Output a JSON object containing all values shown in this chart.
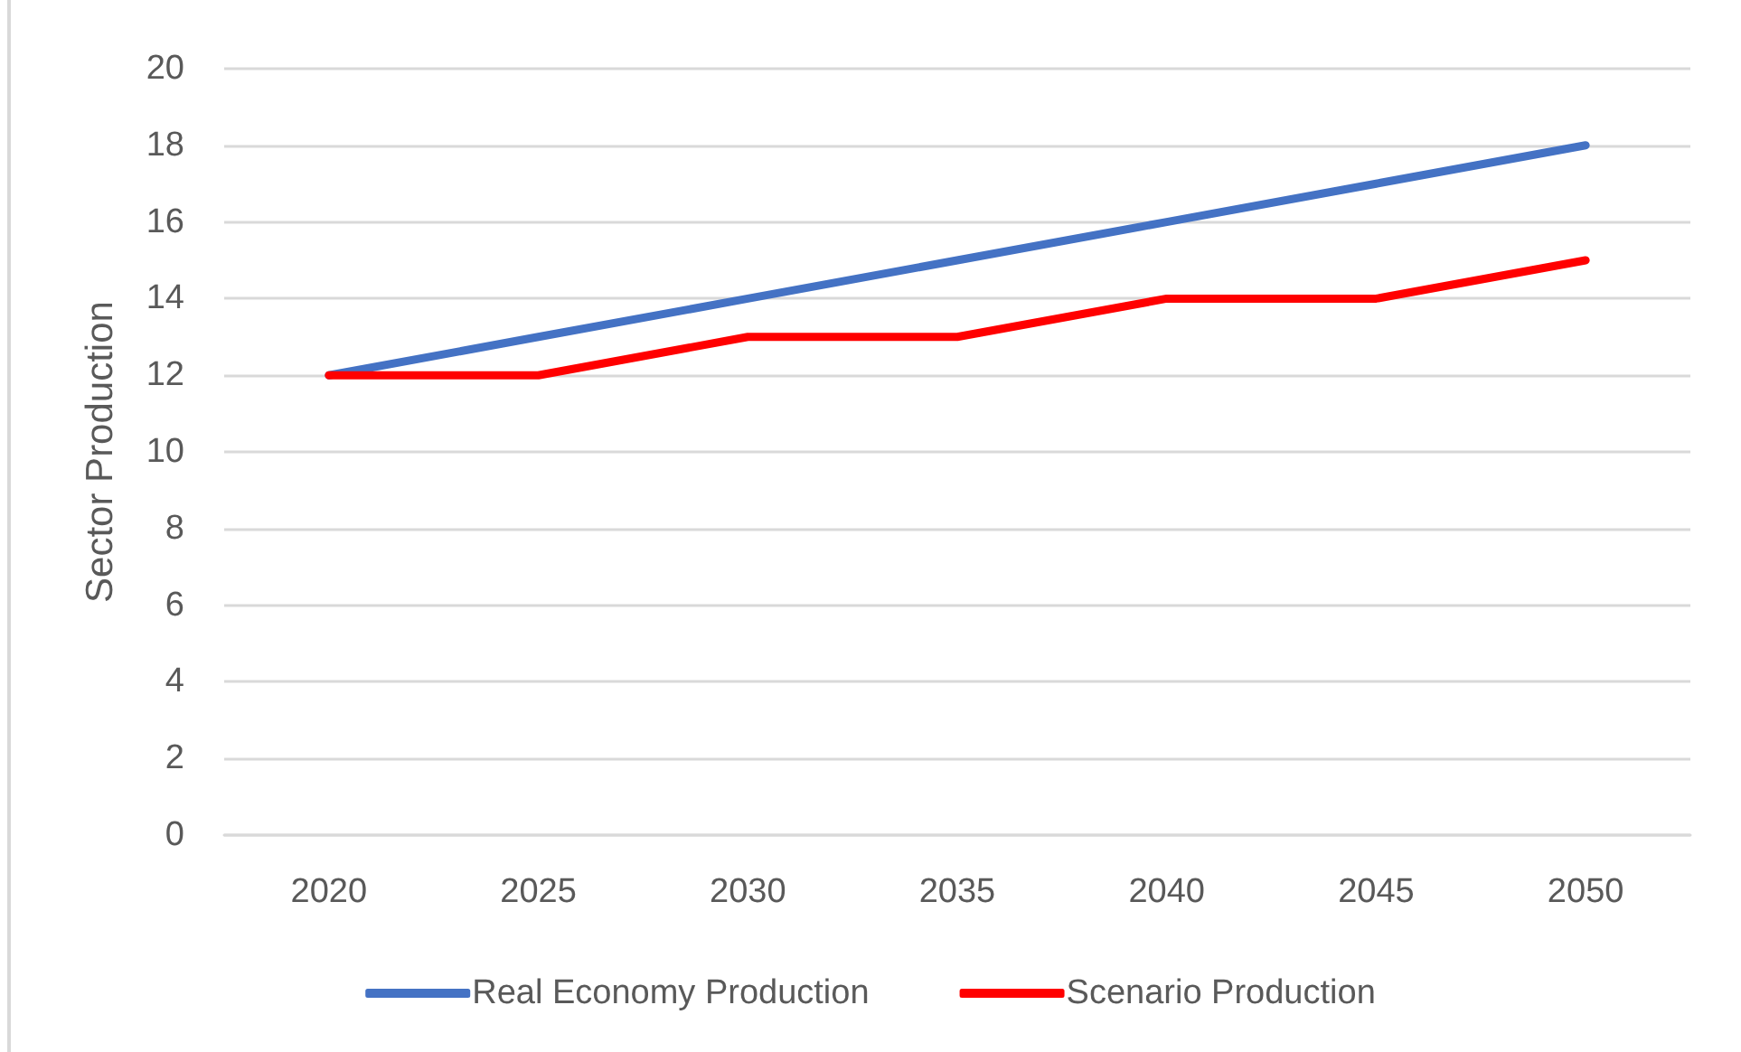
{
  "chart_data": {
    "type": "line",
    "ylabel": "Sector Production",
    "categories": [
      "2020",
      "2025",
      "2030",
      "2035",
      "2040",
      "2045",
      "2050"
    ],
    "series": [
      {
        "name": "Real Economy Production",
        "color": "#4472c4",
        "values": [
          12,
          13,
          14,
          15,
          16,
          17,
          18
        ]
      },
      {
        "name": "Scenario Production",
        "color": "#ff0000",
        "values": [
          12,
          12,
          13,
          13,
          14,
          14,
          15
        ]
      }
    ],
    "ylim": [
      0,
      20
    ],
    "yticks": [
      0,
      2,
      4,
      6,
      8,
      10,
      12,
      14,
      16,
      18,
      20
    ],
    "grid": "y",
    "legend": "bottom",
    "marker": "none",
    "line_style": "solid"
  }
}
